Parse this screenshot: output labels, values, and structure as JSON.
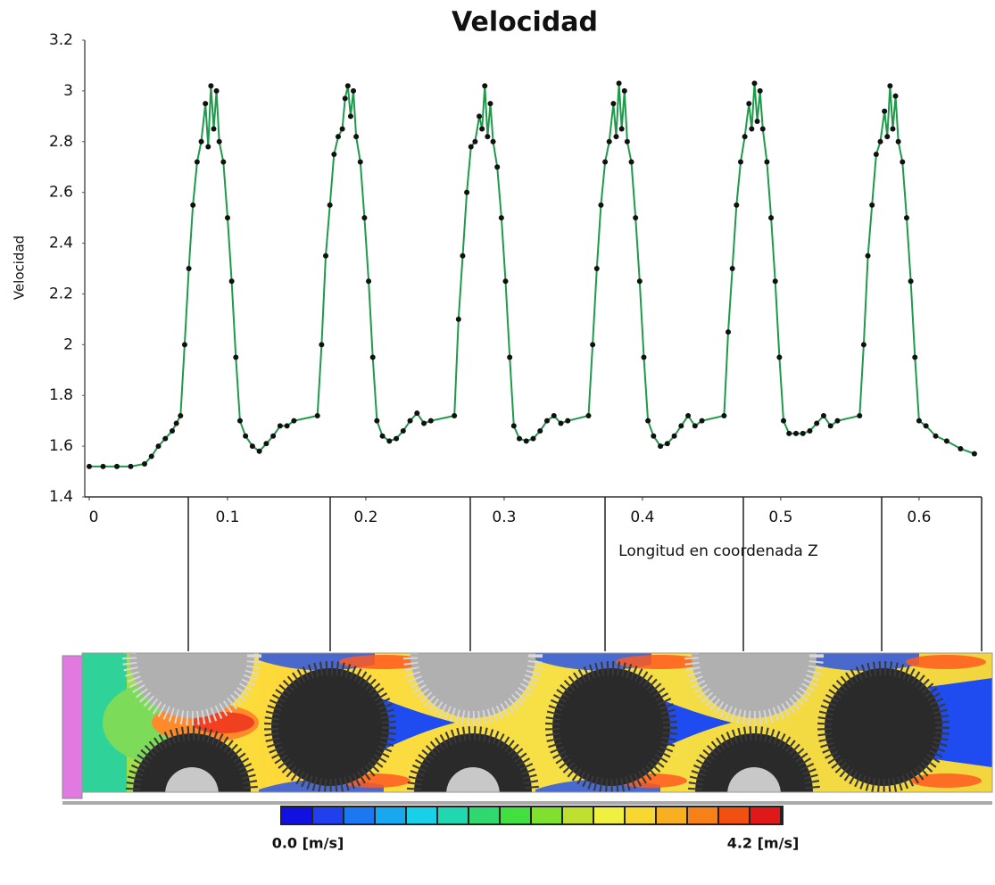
{
  "chart_data": {
    "type": "line",
    "title": "Velocidad",
    "x_label": "Longitud en coordenada Z",
    "y_label": "Velocidad",
    "x": [
      0,
      0.01,
      0.02,
      0.03,
      0.04,
      0.045,
      0.05,
      0.055,
      0.06,
      0.063,
      0.066,
      0.069,
      0.072,
      0.075,
      0.078,
      0.081,
      0.084,
      0.086,
      0.088,
      0.09,
      0.092,
      0.094,
      0.097,
      0.1,
      0.103,
      0.106,
      0.109,
      0.113,
      0.118,
      0.123,
      0.128,
      0.133,
      0.138,
      0.143,
      0.148,
      0.165,
      0.168,
      0.171,
      0.174,
      0.177,
      0.18,
      0.183,
      0.185,
      0.187,
      0.189,
      0.191,
      0.193,
      0.196,
      0.199,
      0.202,
      0.205,
      0.208,
      0.212,
      0.217,
      0.222,
      0.227,
      0.232,
      0.237,
      0.242,
      0.247,
      0.264,
      0.267,
      0.27,
      0.273,
      0.276,
      0.279,
      0.282,
      0.284,
      0.286,
      0.288,
      0.29,
      0.292,
      0.295,
      0.298,
      0.301,
      0.304,
      0.307,
      0.311,
      0.316,
      0.321,
      0.326,
      0.331,
      0.336,
      0.341,
      0.346,
      0.361,
      0.364,
      0.367,
      0.37,
      0.373,
      0.376,
      0.379,
      0.381,
      0.383,
      0.385,
      0.387,
      0.389,
      0.392,
      0.395,
      0.398,
      0.401,
      0.404,
      0.408,
      0.413,
      0.418,
      0.423,
      0.428,
      0.433,
      0.438,
      0.443,
      0.459,
      0.462,
      0.465,
      0.468,
      0.471,
      0.474,
      0.477,
      0.479,
      0.481,
      0.483,
      0.485,
      0.487,
      0.49,
      0.493,
      0.496,
      0.499,
      0.502,
      0.506,
      0.511,
      0.516,
      0.521,
      0.526,
      0.531,
      0.536,
      0.541,
      0.557,
      0.56,
      0.563,
      0.566,
      0.569,
      0.572,
      0.575,
      0.577,
      0.579,
      0.581,
      0.583,
      0.585,
      0.588,
      0.591,
      0.594,
      0.597,
      0.6,
      0.605,
      0.612,
      0.62,
      0.63,
      0.64
    ],
    "values": [
      1.52,
      1.52,
      1.52,
      1.52,
      1.53,
      1.56,
      1.6,
      1.63,
      1.66,
      1.69,
      1.72,
      2.0,
      2.3,
      2.55,
      2.72,
      2.8,
      2.95,
      2.78,
      3.02,
      2.85,
      3.0,
      2.8,
      2.72,
      2.5,
      2.25,
      1.95,
      1.7,
      1.64,
      1.6,
      1.58,
      1.61,
      1.64,
      1.68,
      1.68,
      1.7,
      1.72,
      2.0,
      2.35,
      2.55,
      2.75,
      2.82,
      2.85,
      2.97,
      3.02,
      2.9,
      3.0,
      2.82,
      2.72,
      2.5,
      2.25,
      1.95,
      1.7,
      1.64,
      1.62,
      1.63,
      1.66,
      1.7,
      1.73,
      1.69,
      1.7,
      1.72,
      2.1,
      2.35,
      2.6,
      2.78,
      2.8,
      2.9,
      2.85,
      3.02,
      2.82,
      2.95,
      2.8,
      2.7,
      2.5,
      2.25,
      1.95,
      1.68,
      1.63,
      1.62,
      1.63,
      1.66,
      1.7,
      1.72,
      1.69,
      1.7,
      1.72,
      2.0,
      2.3,
      2.55,
      2.72,
      2.8,
      2.95,
      2.82,
      3.03,
      2.85,
      3.0,
      2.8,
      2.72,
      2.5,
      2.25,
      1.95,
      1.7,
      1.64,
      1.6,
      1.61,
      1.64,
      1.68,
      1.72,
      1.68,
      1.7,
      1.72,
      2.05,
      2.3,
      2.55,
      2.72,
      2.82,
      2.95,
      2.85,
      3.03,
      2.88,
      3.0,
      2.85,
      2.72,
      2.5,
      2.25,
      1.95,
      1.7,
      1.65,
      1.65,
      1.65,
      1.66,
      1.69,
      1.72,
      1.68,
      1.7,
      1.72,
      2.0,
      2.35,
      2.55,
      2.75,
      2.8,
      2.92,
      2.82,
      3.02,
      2.85,
      2.98,
      2.8,
      2.72,
      2.5,
      2.25,
      1.95,
      1.7,
      1.68,
      1.64,
      1.62,
      1.59,
      1.57
    ],
    "color": "#1e9a4a",
    "marker_color": "#111111",
    "xlim": [
      0,
      0.642
    ],
    "ylim": [
      1.4,
      3.2
    ],
    "xticks": [
      0,
      0.1,
      0.2,
      0.3,
      0.4,
      0.5,
      0.6
    ],
    "yticks": [
      1.4,
      1.6,
      1.8,
      2,
      2.2,
      2.4,
      2.6,
      2.8,
      3,
      3.2
    ],
    "grid": false
  },
  "colorbar": {
    "min_label": "0.0 [m/s]",
    "max_label": "4.2 [m/s]"
  }
}
